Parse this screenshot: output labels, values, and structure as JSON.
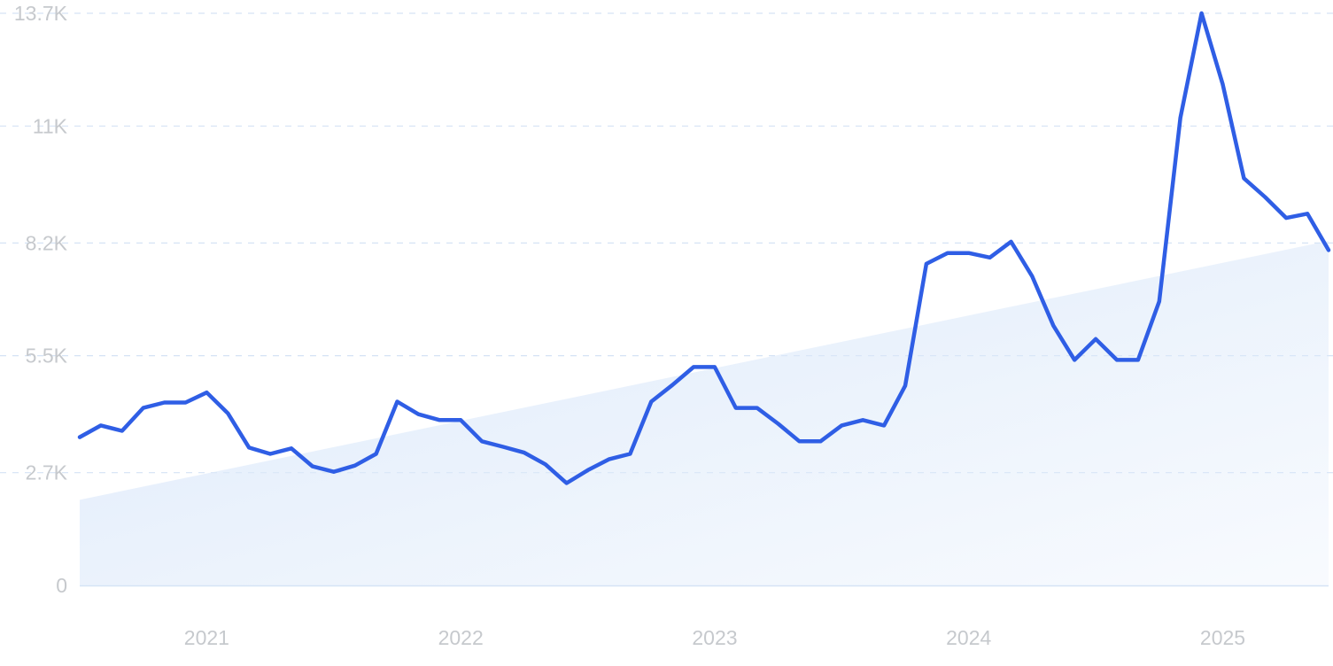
{
  "chart_data": {
    "type": "line",
    "title": "",
    "xlabel": "",
    "ylabel": "",
    "y_ticks": [
      "0",
      "2.7K",
      "5.5K",
      "8.2K",
      "11K",
      "13.7K"
    ],
    "y_tick_values": [
      0,
      2700,
      5500,
      8200,
      11000,
      13700
    ],
    "x_ticks": [
      "2021",
      "2022",
      "2023",
      "2024",
      "2025"
    ],
    "x_tick_positions": [
      "2021-01",
      "2022-01",
      "2023-01",
      "2024-01",
      "2025-01"
    ],
    "xlim": [
      "2020-07",
      "2025-06"
    ],
    "ylim": [
      0,
      13700
    ],
    "grid": "horizontal dashed",
    "x": [
      "2020-07",
      "2020-08",
      "2020-09",
      "2020-10",
      "2020-11",
      "2020-12",
      "2021-01",
      "2021-02",
      "2021-03",
      "2021-04",
      "2021-05",
      "2021-06",
      "2021-07",
      "2021-08",
      "2021-09",
      "2021-10",
      "2021-11",
      "2021-12",
      "2022-01",
      "2022-02",
      "2022-03",
      "2022-04",
      "2022-05",
      "2022-06",
      "2022-07",
      "2022-08",
      "2022-09",
      "2022-10",
      "2022-11",
      "2022-12",
      "2023-01",
      "2023-02",
      "2023-03",
      "2023-04",
      "2023-05",
      "2023-06",
      "2023-07",
      "2023-08",
      "2023-09",
      "2023-10",
      "2023-11",
      "2023-12",
      "2024-01",
      "2024-02",
      "2024-03",
      "2024-04",
      "2024-05",
      "2024-06",
      "2024-07",
      "2024-08",
      "2024-09",
      "2024-10",
      "2024-11",
      "2024-12",
      "2025-01",
      "2025-02",
      "2025-03",
      "2025-04",
      "2025-05",
      "2025-06"
    ],
    "series": [
      {
        "values": [
          3550,
          3830,
          3700,
          4250,
          4380,
          4380,
          4620,
          4120,
          3300,
          3150,
          3280,
          2850,
          2720,
          2870,
          3150,
          4400,
          4100,
          3960,
          3960,
          3450,
          3320,
          3180,
          2900,
          2450,
          2760,
          3020,
          3150,
          4400,
          4800,
          5230,
          5230,
          4250,
          4250,
          3870,
          3450,
          3450,
          3830,
          3960,
          3830,
          4780,
          7700,
          7960,
          7960,
          7850,
          8230,
          7400,
          6220,
          5400,
          5900,
          5400,
          5400,
          6800,
          11200,
          13700,
          12000,
          9750,
          9300,
          8800,
          8900,
          8030
        ]
      }
    ],
    "trend": {
      "type": "area",
      "start_value": 2050,
      "end_value": 8250
    },
    "colors": {
      "line": "#2f5ee5",
      "trend_fill": "#dce9fa",
      "grid": "#d5e3f5",
      "tick_text": "#c6c9cd"
    }
  }
}
